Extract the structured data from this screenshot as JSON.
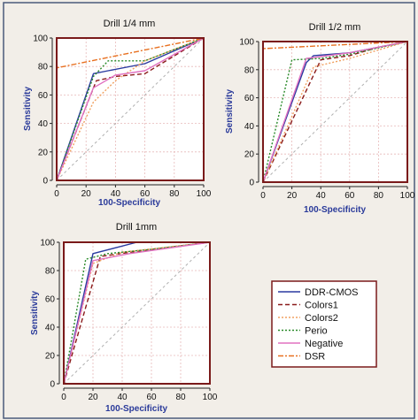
{
  "colors": {
    "background": "#f2eee8",
    "frame": "#4a5a7a",
    "plot_border": "#7a1a1a",
    "plot_bg": "#ffffff",
    "grid": "#e7b9b9",
    "diagonal": "#b0b0b0",
    "axis_text": "#2a3a9a",
    "tick_text": "#111111"
  },
  "legend": {
    "entries": [
      {
        "name": "DDR-CMOS",
        "color": "#2a3aa0",
        "dash": "solid"
      },
      {
        "name": "Colors1",
        "color": "#8a1a1a",
        "dash": "dashed"
      },
      {
        "name": "Colors2",
        "color": "#f0a060",
        "dash": "dotted"
      },
      {
        "name": "Perio",
        "color": "#2a8a2a",
        "dash": "dotted"
      },
      {
        "name": "Negative",
        "color": "#e070c0",
        "dash": "solid"
      },
      {
        "name": "DSR",
        "color": "#e87020",
        "dash": "dashdot"
      }
    ]
  },
  "chart_data": [
    {
      "type": "line",
      "title": "Drill 1/4 mm",
      "xlabel": "100-Specificity",
      "ylabel": "Sensitivity",
      "xlim": [
        0,
        100
      ],
      "ylim": [
        0,
        100
      ],
      "xticks": [
        "0",
        "20",
        "40",
        "60",
        "80",
        "100"
      ],
      "yticks": [
        "0",
        "20",
        "40",
        "60",
        "80",
        "100"
      ],
      "grid": true,
      "series": [
        {
          "name": "DDR-CMOS",
          "x": [
            0,
            25,
            35,
            60,
            100
          ],
          "y": [
            0,
            75,
            77,
            82,
            100
          ]
        },
        {
          "name": "Colors1",
          "x": [
            0,
            27,
            40,
            60,
            100
          ],
          "y": [
            0,
            70,
            73,
            75,
            100
          ]
        },
        {
          "name": "Colors2",
          "x": [
            0,
            25,
            40,
            60,
            100
          ],
          "y": [
            0,
            55,
            70,
            84,
            100
          ]
        },
        {
          "name": "Perio",
          "x": [
            0,
            25,
            35,
            60,
            100
          ],
          "y": [
            0,
            73,
            84,
            84,
            100
          ]
        },
        {
          "name": "Negative",
          "x": [
            0,
            25,
            40,
            60,
            100
          ],
          "y": [
            0,
            65,
            74,
            77,
            100
          ]
        },
        {
          "name": "DSR",
          "x": [
            0,
            0,
            100
          ],
          "y": [
            0,
            79,
            100
          ]
        }
      ]
    },
    {
      "type": "line",
      "title": "Drill 1/2 mm",
      "xlabel": "100-Specificity",
      "ylabel": "Sensitivity",
      "xlim": [
        0,
        100
      ],
      "ylim": [
        0,
        100
      ],
      "xticks": [
        "0",
        "20",
        "40",
        "60",
        "80",
        "100"
      ],
      "yticks": [
        "0",
        "20",
        "40",
        "60",
        "80",
        "100"
      ],
      "grid": true,
      "series": [
        {
          "name": "DDR-CMOS",
          "x": [
            0,
            30,
            35,
            60,
            100
          ],
          "y": [
            0,
            85,
            90,
            92,
            100
          ]
        },
        {
          "name": "Colors1",
          "x": [
            0,
            40,
            60,
            80,
            100
          ],
          "y": [
            0,
            87,
            90,
            96,
            100
          ]
        },
        {
          "name": "Colors2",
          "x": [
            0,
            35,
            60,
            80,
            100
          ],
          "y": [
            0,
            82,
            88,
            94,
            100
          ]
        },
        {
          "name": "Perio",
          "x": [
            0,
            20,
            40,
            60,
            100
          ],
          "y": [
            0,
            87,
            88,
            91,
            100
          ]
        },
        {
          "name": "Negative",
          "x": [
            0,
            30,
            60,
            100
          ],
          "y": [
            0,
            88,
            92,
            100
          ]
        },
        {
          "name": "DSR",
          "x": [
            0,
            0,
            100
          ],
          "y": [
            0,
            95,
            100
          ]
        }
      ]
    },
    {
      "type": "line",
      "title": "Drill 1mm",
      "xlabel": "100-Specificity",
      "ylabel": "Sensitivity",
      "xlim": [
        0,
        100
      ],
      "ylim": [
        0,
        100
      ],
      "xticks": [
        "0",
        "20",
        "40",
        "60",
        "80",
        "100"
      ],
      "yticks": [
        "0",
        "20",
        "40",
        "60",
        "80",
        "100"
      ],
      "grid": true,
      "series": [
        {
          "name": "DDR-CMOS",
          "x": [
            0,
            20,
            50,
            100
          ],
          "y": [
            0,
            92,
            100,
            100
          ]
        },
        {
          "name": "Colors1",
          "x": [
            0,
            25,
            60,
            100
          ],
          "y": [
            0,
            90,
            95,
            100
          ]
        },
        {
          "name": "Colors2",
          "x": [
            0,
            20,
            40,
            100
          ],
          "y": [
            0,
            85,
            93,
            100
          ]
        },
        {
          "name": "Perio",
          "x": [
            0,
            15,
            30,
            60,
            100
          ],
          "y": [
            0,
            88,
            92,
            95,
            100
          ]
        },
        {
          "name": "Negative",
          "x": [
            0,
            20,
            45,
            100
          ],
          "y": [
            0,
            87,
            92,
            100
          ]
        },
        {
          "name": "DSR",
          "x": [
            0,
            0,
            100
          ],
          "y": [
            0,
            100,
            100
          ]
        }
      ]
    }
  ]
}
